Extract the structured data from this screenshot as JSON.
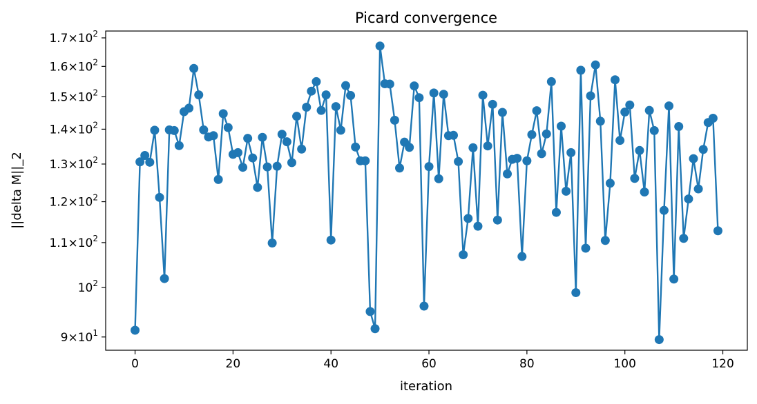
{
  "chart_data": {
    "type": "line",
    "title": "Picard convergence",
    "xlabel": "iteration",
    "ylabel": "||delta M||_2",
    "yscale": "log",
    "grid": false,
    "xlim": [
      -6,
      125
    ],
    "ylim": [
      87.5,
      172.5
    ],
    "xticks": [
      0,
      20,
      40,
      60,
      80,
      100,
      120
    ],
    "xtick_labels": [
      "0",
      "20",
      "40",
      "60",
      "80",
      "100",
      "120"
    ],
    "yticks": [
      {
        "value": 90,
        "mantissa": "9",
        "exp": "1"
      },
      {
        "value": 100,
        "mantissa": "",
        "exp": "2"
      },
      {
        "value": 110,
        "mantissa": "1.1",
        "exp": "2"
      },
      {
        "value": 120,
        "mantissa": "1.2",
        "exp": "2"
      },
      {
        "value": 130,
        "mantissa": "1.3",
        "exp": "2"
      },
      {
        "value": 140,
        "mantissa": "1.4",
        "exp": "2"
      },
      {
        "value": 150,
        "mantissa": "1.5",
        "exp": "2"
      },
      {
        "value": 160,
        "mantissa": "1.6",
        "exp": "2"
      },
      {
        "value": 170,
        "mantissa": "1.7",
        "exp": "2"
      }
    ],
    "line_color": "#1f77b4",
    "marker": "circle",
    "series": [
      {
        "values": [
          91.3,
          130.6,
          132.4,
          130.5,
          139.7,
          121.1,
          101.9,
          139.8,
          139.6,
          135.2,
          145.3,
          146.4,
          159.3,
          150.6,
          139.8,
          137.7,
          138.1,
          125.8,
          144.7,
          140.5,
          132.7,
          133.2,
          129.1,
          137.3,
          131.7,
          123.7,
          137.6,
          129.2,
          109.9,
          129.4,
          138.5,
          136.3,
          130.4,
          143.9,
          134.2,
          146.7,
          151.8,
          154.9,
          145.7,
          150.6,
          110.6,
          146.9,
          139.7,
          153.6,
          150.4,
          134.8,
          130.9,
          130.9,
          95.0,
          91.6,
          167.1,
          154.2,
          154.1,
          142.7,
          128.9,
          136.2,
          134.7,
          153.5,
          149.7,
          96.1,
          129.3,
          151.2,
          126.0,
          150.8,
          138.1,
          138.2,
          130.7,
          107.2,
          115.8,
          134.6,
          113.9,
          150.5,
          135.1,
          147.6,
          115.4,
          145.1,
          127.3,
          131.3,
          131.6,
          106.8,
          130.9,
          138.4,
          145.6,
          132.9,
          138.6,
          154.9,
          117.3,
          140.9,
          122.7,
          133.2,
          98.9,
          158.7,
          108.7,
          150.3,
          160.5,
          142.4,
          110.5,
          124.8,
          155.5,
          136.7,
          145.2,
          147.4,
          126.1,
          133.8,
          122.5,
          145.7,
          139.6,
          89.5,
          117.8,
          147.1,
          101.8,
          140.8,
          111.0,
          120.7,
          131.5,
          123.3,
          134.1,
          142.0,
          143.3,
          112.8
        ]
      }
    ]
  }
}
